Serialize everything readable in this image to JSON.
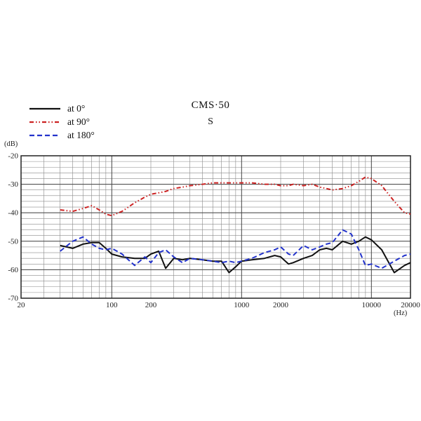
{
  "chart_data": {
    "type": "line",
    "title": "CMS·50",
    "subtitle": "S",
    "ylabel": "(dB)",
    "xlabel": "(Hz)",
    "grid": true,
    "legend_position": "top-left",
    "x_axis": {
      "scale": "log",
      "min": 20,
      "max": 20000,
      "ticks": [
        {
          "value": 20,
          "label": "20"
        },
        {
          "value": 100,
          "label": "100"
        },
        {
          "value": 200,
          "label": "200"
        },
        {
          "value": 1000,
          "label": "1000"
        },
        {
          "value": 2000,
          "label": "2000"
        },
        {
          "value": 10000,
          "label": "10000"
        },
        {
          "value": 20000,
          "label": "20000"
        }
      ]
    },
    "y_axis": {
      "min": -70,
      "max": -20,
      "major_step": 10,
      "minor_step": 2,
      "ticks": [
        "-20",
        "-30",
        "-40",
        "-50",
        "-60",
        "-70"
      ]
    },
    "frequencies": [
      40,
      50,
      60,
      70,
      80,
      90,
      100,
      120,
      150,
      180,
      200,
      230,
      260,
      300,
      350,
      400,
      500,
      600,
      700,
      800,
      900,
      1000,
      1200,
      1500,
      1800,
      2000,
      2300,
      2500,
      3000,
      3500,
      4000,
      4500,
      5000,
      6000,
      7000,
      8000,
      9000,
      10000,
      12000,
      15000,
      18000,
      20000
    ],
    "series": [
      {
        "label": "at 0°",
        "color": "#111111",
        "style": "solid",
        "dash": "",
        "values": [
          -51.5,
          -52.5,
          -51,
          -50.5,
          -50.5,
          -52.5,
          -54.5,
          -55.5,
          -56,
          -56,
          -54.5,
          -53.5,
          -59.5,
          -56,
          -56.5,
          -56,
          -56.5,
          -57,
          -57,
          -61,
          -59,
          -57,
          -56.5,
          -56,
          -55,
          -55.5,
          -58,
          -57.5,
          -56,
          -55,
          -53,
          -52.5,
          -53,
          -50,
          -51,
          -50,
          -48.5,
          -49.5,
          -53,
          -61,
          -58.5,
          -57.5
        ]
      },
      {
        "label": "at 90°",
        "color": "#cc2222",
        "style": "dash-dot-dot",
        "dash": "6 3 1.5 3 1.5 3",
        "values": [
          -39,
          -39.5,
          -38.5,
          -37.5,
          -39,
          -40.5,
          -41,
          -39.5,
          -36.5,
          -34.5,
          -33.5,
          -33,
          -32.5,
          -31.5,
          -31,
          -30.5,
          -30,
          -29.5,
          -29.5,
          -29.5,
          -29.5,
          -29.5,
          -29.5,
          -30,
          -30,
          -30.5,
          -30.5,
          -30,
          -30.5,
          -30,
          -31,
          -31.5,
          -32,
          -31.5,
          -30.5,
          -29,
          -27.5,
          -28,
          -30.5,
          -36,
          -40,
          -40.5
        ]
      },
      {
        "label": "at 180°",
        "color": "#2333cc",
        "style": "dashed",
        "dash": "7 4",
        "values": [
          -53.5,
          -50,
          -48.5,
          -51,
          -52.5,
          -53,
          -52.5,
          -54.5,
          -58.5,
          -55.5,
          -57.5,
          -54,
          -53,
          -55.5,
          -57.5,
          -56,
          -56.5,
          -57,
          -57.5,
          -57,
          -57.5,
          -57,
          -56,
          -54,
          -53,
          -52,
          -54.5,
          -55,
          -51.5,
          -53,
          -52,
          -51,
          -50.5,
          -46,
          -47.5,
          -53,
          -58.5,
          -58,
          -59.5,
          -57,
          -55,
          -54.5
        ]
      }
    ],
    "colors": {
      "grid_minor": "#8a8a8a",
      "grid_major": "#444444",
      "frame": "#222222",
      "text": "#222222"
    }
  }
}
